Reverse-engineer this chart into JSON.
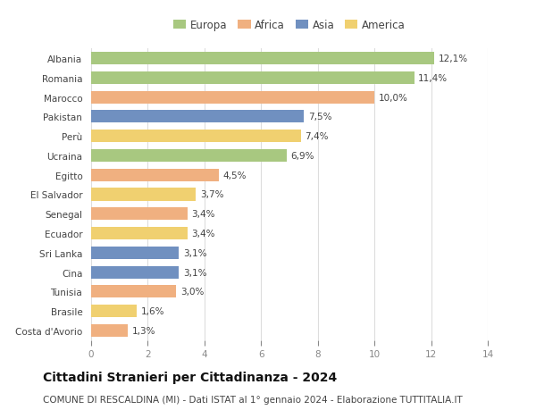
{
  "countries": [
    "Albania",
    "Romania",
    "Marocco",
    "Pakistan",
    "Perù",
    "Ucraina",
    "Egitto",
    "El Salvador",
    "Senegal",
    "Ecuador",
    "Sri Lanka",
    "Cina",
    "Tunisia",
    "Brasile",
    "Costa d'Avorio"
  ],
  "values": [
    12.1,
    11.4,
    10.0,
    7.5,
    7.4,
    6.9,
    4.5,
    3.7,
    3.4,
    3.4,
    3.1,
    3.1,
    3.0,
    1.6,
    1.3
  ],
  "labels": [
    "12,1%",
    "11,4%",
    "10,0%",
    "7,5%",
    "7,4%",
    "6,9%",
    "4,5%",
    "3,7%",
    "3,4%",
    "3,4%",
    "3,1%",
    "3,1%",
    "3,0%",
    "1,6%",
    "1,3%"
  ],
  "continents": [
    "Europa",
    "Europa",
    "Africa",
    "Asia",
    "America",
    "Europa",
    "Africa",
    "America",
    "Africa",
    "America",
    "Asia",
    "Asia",
    "Africa",
    "America",
    "Africa"
  ],
  "continent_colors": {
    "Europa": "#a8c880",
    "Africa": "#f0b080",
    "Asia": "#7090c0",
    "America": "#f0d070"
  },
  "legend_order": [
    "Europa",
    "Africa",
    "Asia",
    "America"
  ],
  "title": "Cittadini Stranieri per Cittadinanza - 2024",
  "subtitle": "COMUNE DI RESCALDINA (MI) - Dati ISTAT al 1° gennaio 2024 - Elaborazione TUTTITALIA.IT",
  "xlim": [
    0,
    14
  ],
  "xticks": [
    0,
    2,
    4,
    6,
    8,
    10,
    12,
    14
  ],
  "background_color": "#ffffff",
  "grid_color": "#dddddd",
  "bar_height": 0.65,
  "title_fontsize": 10,
  "subtitle_fontsize": 7.5,
  "label_fontsize": 7.5,
  "tick_fontsize": 7.5,
  "legend_fontsize": 8.5
}
